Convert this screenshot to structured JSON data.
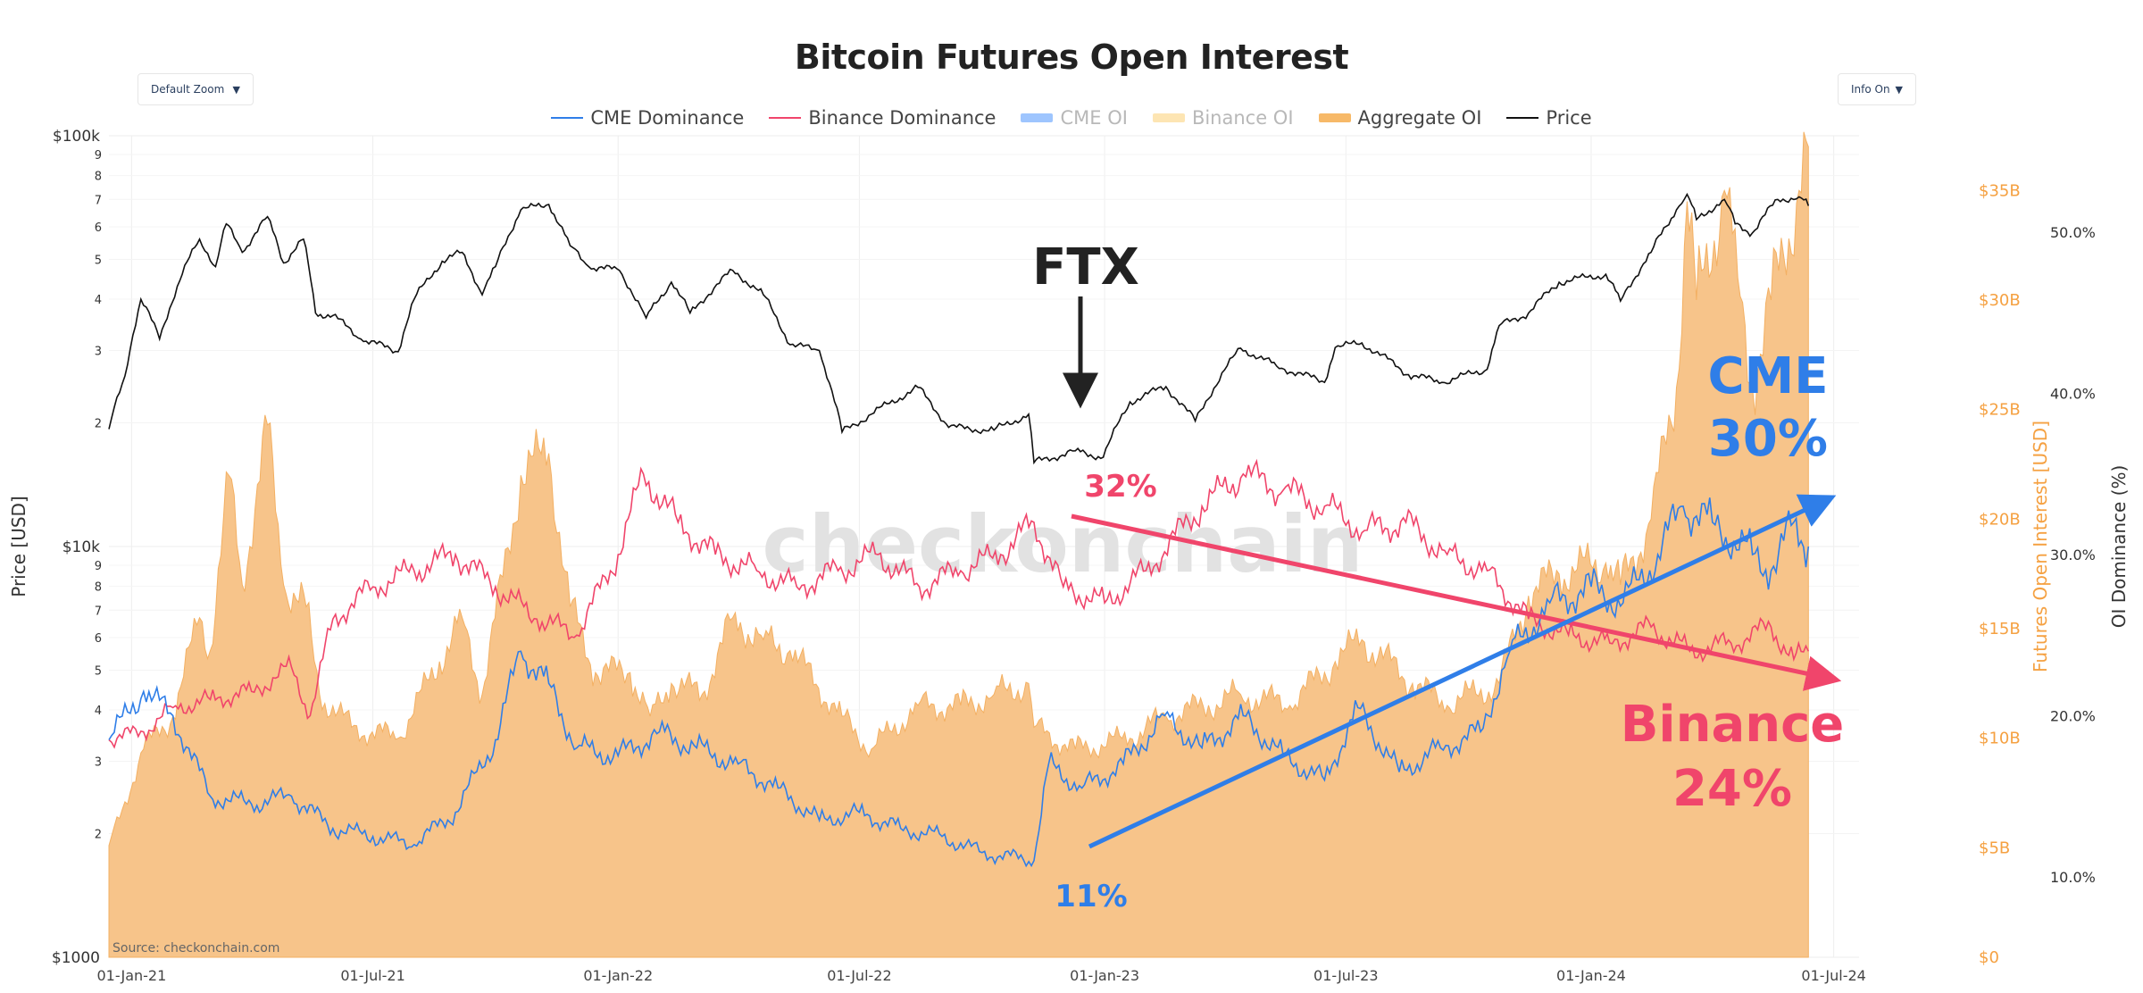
{
  "title": "Bitcoin Futures Open Interest",
  "controls": {
    "zoom_label": "Default Zoom",
    "info_label": "Info On"
  },
  "legend": [
    {
      "name": "CME Dominance",
      "color": "#2f7ee8",
      "kind": "line",
      "visible": true
    },
    {
      "name": "Binance Dominance",
      "color": "#f0456b",
      "kind": "line",
      "visible": true
    },
    {
      "name": "CME OI",
      "color": "#9ec5fe",
      "kind": "fill",
      "visible": false
    },
    {
      "name": "Binance OI",
      "color": "#fde5b3",
      "kind": "fill",
      "visible": false
    },
    {
      "name": "Aggregate OI",
      "color": "#f7b968",
      "kind": "fill",
      "visible": true
    },
    {
      "name": "Price",
      "color": "#111111",
      "kind": "line",
      "visible": true
    }
  ],
  "watermark": "checkonchain",
  "source": "Source: checkonchain.com",
  "annotations": {
    "ftx": "FTX",
    "binance_start": "32%",
    "cme_start": "11%",
    "cme_label": "CME",
    "cme_end": "30%",
    "binance_label": "Binance",
    "binance_end": "24%"
  },
  "colors": {
    "cme": "#2f7ee8",
    "binance": "#f0456b",
    "aggregate_fill": "#f7c48a",
    "aggregate_tick": "#f5a142",
    "price": "#111111"
  },
  "chart_data": {
    "type": "line",
    "x_range": [
      "2020-12-15",
      "2024-07-20"
    ],
    "xaxis": {
      "ticks": [
        "01-Jan-21",
        "01-Jul-21",
        "01-Jan-22",
        "01-Jul-22",
        "01-Jan-23",
        "01-Jul-23",
        "01-Jan-24",
        "01-Jul-24"
      ]
    },
    "y_price": {
      "label": "Price [USD]",
      "scale": "log",
      "range": [
        1000,
        100000
      ],
      "major_ticks": [
        {
          "v": 100000,
          "t": "$100k"
        },
        {
          "v": 10000,
          "t": "$10k"
        },
        {
          "v": 1000,
          "t": "$1000"
        }
      ],
      "minor_ticks": [
        {
          "v": 90000,
          "t": "9"
        },
        {
          "v": 80000,
          "t": "8"
        },
        {
          "v": 70000,
          "t": "7"
        },
        {
          "v": 60000,
          "t": "6"
        },
        {
          "v": 50000,
          "t": "5"
        },
        {
          "v": 40000,
          "t": "4"
        },
        {
          "v": 30000,
          "t": "3"
        },
        {
          "v": 20000,
          "t": "2"
        },
        {
          "v": 9000,
          "t": "9"
        },
        {
          "v": 8000,
          "t": "8"
        },
        {
          "v": 7000,
          "t": "7"
        },
        {
          "v": 6000,
          "t": "6"
        },
        {
          "v": 5000,
          "t": "5"
        },
        {
          "v": 4000,
          "t": "4"
        },
        {
          "v": 3000,
          "t": "3"
        },
        {
          "v": 2000,
          "t": "2"
        }
      ]
    },
    "y_oi": {
      "label": "Futures Open Interest [USD]",
      "range": [
        0,
        37.5
      ],
      "ticks": [
        {
          "v": 0,
          "t": "$0"
        },
        {
          "v": 5,
          "t": "$5B"
        },
        {
          "v": 10,
          "t": "$10B"
        },
        {
          "v": 15,
          "t": "$15B"
        },
        {
          "v": 20,
          "t": "$20B"
        },
        {
          "v": 25,
          "t": "$25B"
        },
        {
          "v": 30,
          "t": "$30B"
        },
        {
          "v": 35,
          "t": "$35B"
        }
      ]
    },
    "y_dom": {
      "label": "OI Dominance (%)",
      "range": [
        5,
        56
      ],
      "ticks": [
        {
          "v": 10,
          "t": "10.0%"
        },
        {
          "v": 20,
          "t": "20.0%"
        },
        {
          "v": 30,
          "t": "30.0%"
        },
        {
          "v": 40,
          "t": "40.0%"
        },
        {
          "v": 50,
          "t": "50.0%"
        }
      ]
    },
    "series": [
      {
        "name": "Price",
        "axis": "price",
        "points": [
          [
            "2020-12-15",
            19300
          ],
          [
            "2020-12-27",
            26000
          ],
          [
            "2021-01-08",
            40000
          ],
          [
            "2021-01-22",
            32000
          ],
          [
            "2021-02-08",
            46000
          ],
          [
            "2021-02-21",
            56000
          ],
          [
            "2021-03-05",
            48000
          ],
          [
            "2021-03-13",
            61000
          ],
          [
            "2021-03-25",
            52000
          ],
          [
            "2021-04-13",
            63500
          ],
          [
            "2021-04-25",
            49000
          ],
          [
            "2021-05-10",
            56000
          ],
          [
            "2021-05-19",
            37000
          ],
          [
            "2021-06-01",
            36500
          ],
          [
            "2021-06-22",
            32000
          ],
          [
            "2021-07-20",
            29800
          ],
          [
            "2021-08-01",
            40000
          ],
          [
            "2021-08-22",
            49500
          ],
          [
            "2021-09-06",
            52000
          ],
          [
            "2021-09-21",
            41000
          ],
          [
            "2021-10-01",
            48000
          ],
          [
            "2021-10-20",
            66000
          ],
          [
            "2021-11-10",
            68000
          ],
          [
            "2021-11-26",
            54000
          ],
          [
            "2021-12-10",
            48000
          ],
          [
            "2022-01-02",
            47000
          ],
          [
            "2022-01-22",
            36000
          ],
          [
            "2022-02-10",
            44000
          ],
          [
            "2022-02-24",
            37000
          ],
          [
            "2022-03-28",
            47000
          ],
          [
            "2022-04-20",
            41000
          ],
          [
            "2022-05-10",
            31000
          ],
          [
            "2022-06-01",
            30000
          ],
          [
            "2022-06-18",
            19000
          ],
          [
            "2022-07-10",
            21000
          ],
          [
            "2022-08-14",
            24400
          ],
          [
            "2022-09-06",
            19500
          ],
          [
            "2022-10-10",
            19200
          ],
          [
            "2022-11-05",
            21000
          ],
          [
            "2022-11-09",
            16000
          ],
          [
            "2022-12-10",
            17100
          ],
          [
            "2022-12-31",
            16500
          ],
          [
            "2023-01-20",
            22500
          ],
          [
            "2023-02-16",
            24500
          ],
          [
            "2023-03-10",
            20200
          ],
          [
            "2023-04-13",
            30400
          ],
          [
            "2023-05-10",
            27500
          ],
          [
            "2023-06-15",
            25100
          ],
          [
            "2023-06-23",
            30500
          ],
          [
            "2023-07-13",
            31300
          ],
          [
            "2023-08-17",
            26200
          ],
          [
            "2023-09-11",
            25100
          ],
          [
            "2023-10-15",
            27000
          ],
          [
            "2023-10-24",
            34500
          ],
          [
            "2023-11-15",
            37000
          ],
          [
            "2023-12-08",
            44000
          ],
          [
            "2024-01-12",
            46000
          ],
          [
            "2024-01-23",
            39600
          ],
          [
            "2024-02-15",
            52000
          ],
          [
            "2024-03-05",
            66000
          ],
          [
            "2024-03-13",
            72000
          ],
          [
            "2024-03-20",
            62500
          ],
          [
            "2024-04-10",
            70000
          ],
          [
            "2024-04-18",
            61000
          ],
          [
            "2024-05-01",
            58000
          ],
          [
            "2024-05-20",
            70000
          ],
          [
            "2024-06-05",
            71000
          ],
          [
            "2024-06-12",
            67500
          ]
        ]
      },
      {
        "name": "Aggregate OI",
        "axis": "oi",
        "points": [
          [
            "2020-12-15",
            5.1
          ],
          [
            "2021-01-10",
            9.5
          ],
          [
            "2021-02-01",
            11
          ],
          [
            "2021-02-21",
            15.5
          ],
          [
            "2021-03-01",
            14
          ],
          [
            "2021-03-15",
            22
          ],
          [
            "2021-03-25",
            17
          ],
          [
            "2021-04-13",
            24.3
          ],
          [
            "2021-04-25",
            17
          ],
          [
            "2021-05-12",
            16
          ],
          [
            "2021-05-22",
            12
          ],
          [
            "2021-06-15",
            10.5
          ],
          [
            "2021-07-20",
            10
          ],
          [
            "2021-08-20",
            13.5
          ],
          [
            "2021-09-06",
            15.5
          ],
          [
            "2021-09-21",
            12
          ],
          [
            "2021-10-20",
            22
          ],
          [
            "2021-11-10",
            23
          ],
          [
            "2021-11-26",
            16
          ],
          [
            "2021-12-15",
            13
          ],
          [
            "2022-01-10",
            13
          ],
          [
            "2022-01-25",
            11
          ],
          [
            "2022-02-10",
            12.5
          ],
          [
            "2022-03-05",
            12
          ],
          [
            "2022-03-28",
            15.5
          ],
          [
            "2022-04-20",
            14.5
          ],
          [
            "2022-05-10",
            14
          ],
          [
            "2022-06-18",
            11
          ],
          [
            "2022-07-10",
            9.5
          ],
          [
            "2022-08-14",
            11.5
          ],
          [
            "2022-09-15",
            11.5
          ],
          [
            "2022-10-10",
            12
          ],
          [
            "2022-11-05",
            12.5
          ],
          [
            "2022-11-09",
            10.5
          ],
          [
            "2022-12-10",
            9.5
          ],
          [
            "2023-01-20",
            10
          ],
          [
            "2023-02-16",
            11
          ],
          [
            "2023-03-20",
            11.5
          ],
          [
            "2023-04-13",
            12
          ],
          [
            "2023-05-20",
            11.5
          ],
          [
            "2023-06-23",
            13.5
          ],
          [
            "2023-07-13",
            14.5
          ],
          [
            "2023-08-20",
            12.5
          ],
          [
            "2023-09-15",
            11.5
          ],
          [
            "2023-10-24",
            12.5
          ],
          [
            "2023-11-15",
            16.5
          ],
          [
            "2023-12-08",
            17.5
          ],
          [
            "2024-01-12",
            18
          ],
          [
            "2024-01-23",
            17
          ],
          [
            "2024-02-15",
            20
          ],
          [
            "2024-03-05",
            26
          ],
          [
            "2024-03-13",
            34.5
          ],
          [
            "2024-03-20",
            30
          ],
          [
            "2024-04-10",
            35
          ],
          [
            "2024-04-20",
            31
          ],
          [
            "2024-05-01",
            26
          ],
          [
            "2024-05-15",
            30
          ],
          [
            "2024-06-05",
            35
          ],
          [
            "2024-06-12",
            37
          ]
        ]
      },
      {
        "name": "CME Dominance",
        "axis": "dom",
        "points": [
          [
            "2020-12-15",
            18.5
          ],
          [
            "2021-01-10",
            21.5
          ],
          [
            "2021-02-01",
            20
          ],
          [
            "2021-03-01",
            15
          ],
          [
            "2021-04-01",
            14.5
          ],
          [
            "2021-05-01",
            15
          ],
          [
            "2021-06-01",
            13
          ],
          [
            "2021-07-01",
            12.5
          ],
          [
            "2021-08-01",
            12
          ],
          [
            "2021-09-01",
            14
          ],
          [
            "2021-10-01",
            18.5
          ],
          [
            "2021-10-20",
            24
          ],
          [
            "2021-11-10",
            22
          ],
          [
            "2021-12-01",
            18
          ],
          [
            "2022-01-01",
            17.5
          ],
          [
            "2022-02-01",
            19
          ],
          [
            "2022-03-01",
            18
          ],
          [
            "2022-04-01",
            17
          ],
          [
            "2022-05-01",
            15.5
          ],
          [
            "2022-06-01",
            13.5
          ],
          [
            "2022-07-01",
            14
          ],
          [
            "2022-08-01",
            13
          ],
          [
            "2022-09-01",
            12.5
          ],
          [
            "2022-10-01",
            11.5
          ],
          [
            "2022-11-09",
            11
          ],
          [
            "2022-11-20",
            17
          ],
          [
            "2022-12-15",
            15.5
          ],
          [
            "2023-01-15",
            17
          ],
          [
            "2023-02-15",
            20
          ],
          [
            "2023-03-15",
            18
          ],
          [
            "2023-04-15",
            20
          ],
          [
            "2023-05-15",
            17.5
          ],
          [
            "2023-06-15",
            16
          ],
          [
            "2023-07-10",
            20.5
          ],
          [
            "2023-08-10",
            16.5
          ],
          [
            "2023-09-10",
            18
          ],
          [
            "2023-10-10",
            19
          ],
          [
            "2023-11-01",
            24
          ],
          [
            "2023-12-01",
            27
          ],
          [
            "2024-01-01",
            28
          ],
          [
            "2024-01-25",
            27
          ],
          [
            "2024-02-20",
            30
          ],
          [
            "2024-03-10",
            33
          ],
          [
            "2024-04-01",
            32
          ],
          [
            "2024-05-01",
            30
          ],
          [
            "2024-05-15",
            29
          ],
          [
            "2024-06-01",
            32
          ],
          [
            "2024-06-12",
            30.5
          ]
        ]
      },
      {
        "name": "Binance Dominance",
        "axis": "dom",
        "points": [
          [
            "2020-12-15",
            18.5
          ],
          [
            "2021-01-10",
            19
          ],
          [
            "2021-02-01",
            20.5
          ],
          [
            "2021-03-01",
            21
          ],
          [
            "2021-04-01",
            21.5
          ],
          [
            "2021-05-01",
            23
          ],
          [
            "2021-05-15",
            20
          ],
          [
            "2021-06-01",
            26
          ],
          [
            "2021-07-01",
            28
          ],
          [
            "2021-08-01",
            29
          ],
          [
            "2021-09-01",
            30
          ],
          [
            "2021-10-01",
            28
          ],
          [
            "2021-11-01",
            26
          ],
          [
            "2021-12-01",
            25
          ],
          [
            "2022-01-01",
            30
          ],
          [
            "2022-01-20",
            35
          ],
          [
            "2022-02-15",
            32
          ],
          [
            "2022-03-15",
            30
          ],
          [
            "2022-04-15",
            29
          ],
          [
            "2022-05-15",
            28
          ],
          [
            "2022-06-15",
            29
          ],
          [
            "2022-07-15",
            30
          ],
          [
            "2022-08-15",
            28
          ],
          [
            "2022-09-15",
            29
          ],
          [
            "2022-10-15",
            30
          ],
          [
            "2022-11-09",
            32
          ],
          [
            "2022-12-01",
            28
          ],
          [
            "2023-01-01",
            27
          ],
          [
            "2023-02-01",
            29
          ],
          [
            "2023-03-15",
            33
          ],
          [
            "2023-04-15",
            35
          ],
          [
            "2023-05-15",
            34
          ],
          [
            "2023-06-15",
            33
          ],
          [
            "2023-07-15",
            31.5
          ],
          [
            "2023-08-15",
            32
          ],
          [
            "2023-09-15",
            30
          ],
          [
            "2023-10-15",
            29
          ],
          [
            "2023-11-15",
            26
          ],
          [
            "2023-12-15",
            25
          ],
          [
            "2024-01-15",
            24.5
          ],
          [
            "2024-02-15",
            25.5
          ],
          [
            "2024-03-15",
            24
          ],
          [
            "2024-04-15",
            24.5
          ],
          [
            "2024-05-15",
            25.5
          ],
          [
            "2024-06-01",
            23.5
          ],
          [
            "2024-06-12",
            24
          ]
        ]
      }
    ]
  }
}
